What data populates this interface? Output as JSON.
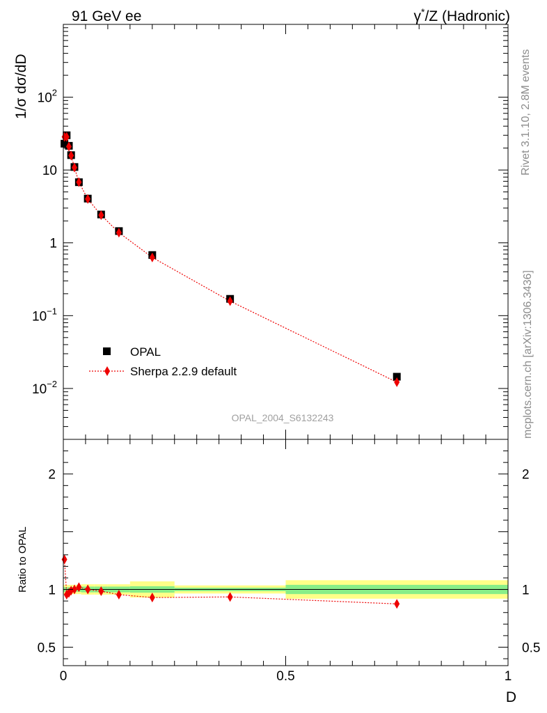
{
  "header": {
    "left": "91 GeV ee",
    "right_prefix": "γ",
    "right_sup": "*",
    "right_suffix": "/Z (Hadronic)"
  },
  "side": {
    "rivet": "Rivet 3.1.10,  2.8M events",
    "mcplots": "mcplots.cern.ch [arXiv:1306.3436]"
  },
  "chart_data": [
    {
      "type": "scatter",
      "panel": "main",
      "ylabel": "1/σ dσ/dD",
      "yscale": "log",
      "xlim": [
        0,
        1
      ],
      "ylim": [
        0.002,
        1000
      ],
      "ytick_labels": [
        {
          "value": 0.01,
          "base": "10",
          "exp": "−2"
        },
        {
          "value": 0.1,
          "base": "10",
          "exp": "−1"
        },
        {
          "value": 1,
          "base": "1",
          "exp": ""
        },
        {
          "value": 10,
          "base": "10",
          "exp": ""
        },
        {
          "value": 100,
          "base": "10",
          "exp": "2"
        }
      ],
      "watermark": "OPAL_2004_S6132243",
      "legend": {
        "placement": "center-left",
        "entries": [
          "OPAL",
          "Sherpa 2.2.9 default"
        ]
      },
      "series": [
        {
          "name": "OPAL",
          "marker": "square",
          "color": "#000000",
          "x": [
            0.0025,
            0.0075,
            0.0125,
            0.0175,
            0.025,
            0.035,
            0.055,
            0.085,
            0.125,
            0.2,
            0.375,
            0.75
          ],
          "y": [
            23,
            30,
            21.5,
            16,
            11,
            6.8,
            4.05,
            2.45,
            1.45,
            0.68,
            0.17,
            0.0145
          ]
        },
        {
          "name": "Sherpa 2.2.9 default",
          "marker": "diamond",
          "color": "#ee0000",
          "linestyle": "dotted",
          "x": [
            0.0025,
            0.0075,
            0.0125,
            0.0175,
            0.025,
            0.035,
            0.055,
            0.085,
            0.125,
            0.2,
            0.375,
            0.75
          ],
          "y": [
            28.5,
            28.5,
            21,
            15.8,
            10.8,
            6.8,
            4.0,
            2.4,
            1.38,
            0.63,
            0.158,
            0.0122
          ]
        }
      ]
    },
    {
      "type": "line",
      "panel": "ratio",
      "ylabel": "Ratio to OPAL",
      "xlabel": "D",
      "xlim": [
        0,
        1
      ],
      "ylim": [
        0.34,
        2.3
      ],
      "xtick_labels": [
        {
          "value": 0,
          "label": "0"
        },
        {
          "value": 0.5,
          "label": "0.5"
        },
        {
          "value": 1,
          "label": "1"
        }
      ],
      "ytick_labels": [
        {
          "value": 0.5,
          "label": "0.5"
        },
        {
          "value": 1,
          "label": "1"
        },
        {
          "value": 2,
          "label": "2"
        }
      ],
      "reference": 1.0,
      "bands": [
        {
          "x": [
            0.0,
            0.005
          ],
          "green": 0.02,
          "yellow": 0.04
        },
        {
          "x": [
            0.005,
            0.01
          ],
          "green": 0.02,
          "yellow": 0.04
        },
        {
          "x": [
            0.01,
            0.015
          ],
          "green": 0.02,
          "yellow": 0.04
        },
        {
          "x": [
            0.015,
            0.02
          ],
          "green": 0.02,
          "yellow": 0.04
        },
        {
          "x": [
            0.02,
            0.03
          ],
          "green": 0.02,
          "yellow": 0.04
        },
        {
          "x": [
            0.03,
            0.04
          ],
          "green": 0.02,
          "yellow": 0.04
        },
        {
          "x": [
            0.04,
            0.07
          ],
          "green": 0.025,
          "yellow": 0.045
        },
        {
          "x": [
            0.07,
            0.1
          ],
          "green": 0.025,
          "yellow": 0.045
        },
        {
          "x": [
            0.1,
            0.15
          ],
          "green": 0.025,
          "yellow": 0.045
        },
        {
          "x": [
            0.15,
            0.25
          ],
          "green": 0.028,
          "yellow": 0.07
        },
        {
          "x": [
            0.25,
            0.5
          ],
          "green": 0.015,
          "yellow": 0.035
        },
        {
          "x": [
            0.5,
            1.0
          ],
          "green": 0.04,
          "yellow": 0.08
        }
      ],
      "series": [
        {
          "name": "Sherpa 2.2.9 default",
          "marker": "diamond",
          "color": "#ee0000",
          "linestyle": "dotted",
          "x": [
            0.0025,
            0.0075,
            0.0125,
            0.0175,
            0.025,
            0.035,
            0.055,
            0.085,
            0.125,
            0.2,
            0.375,
            0.75
          ],
          "y": [
            1.26,
            0.955,
            0.97,
            0.99,
            1.0,
            1.02,
            1.0,
            0.985,
            0.955,
            0.93,
            0.935,
            0.875
          ]
        }
      ]
    }
  ]
}
